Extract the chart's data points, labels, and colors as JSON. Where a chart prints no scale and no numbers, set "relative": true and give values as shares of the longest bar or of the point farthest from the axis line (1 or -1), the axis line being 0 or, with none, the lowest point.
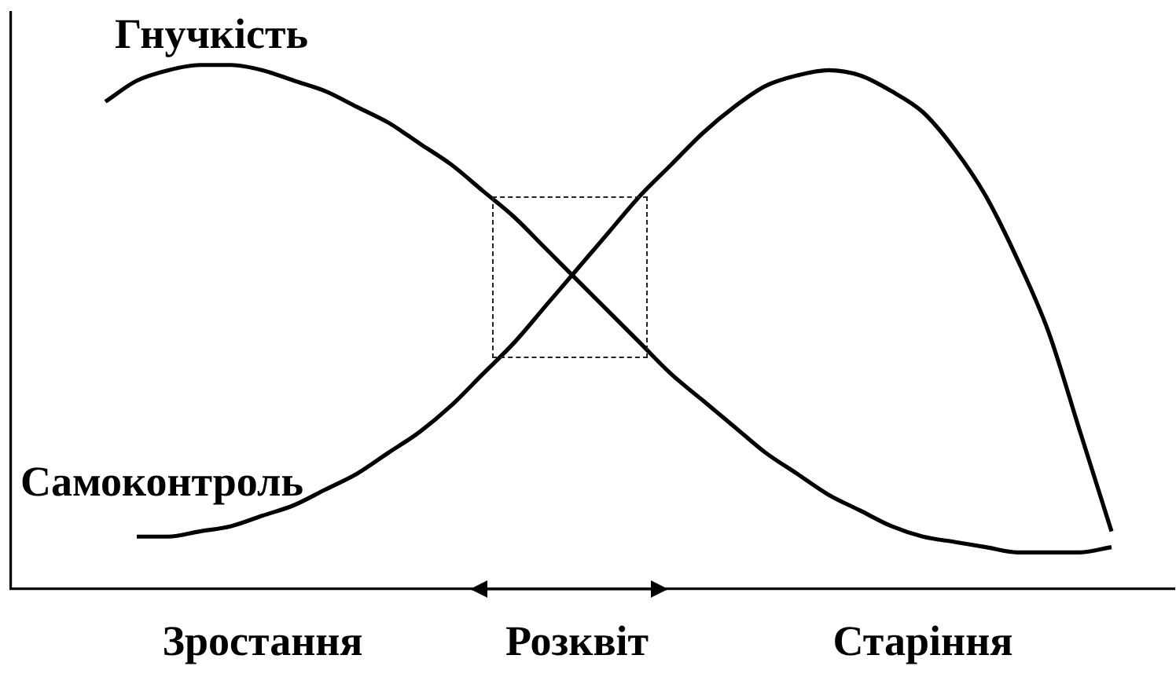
{
  "chart_data": {
    "type": "line",
    "relative": true,
    "marker": "none",
    "categories": [
      null,
      null,
      null,
      null,
      null,
      null,
      null,
      null,
      "Зростання",
      null,
      null,
      null,
      null,
      null,
      null,
      null,
      null,
      null,
      "Розквіт",
      null,
      null,
      null,
      null,
      null,
      null,
      null,
      null,
      null,
      null,
      "Старіння",
      null,
      null,
      null,
      null,
      null,
      null,
      null,
      null
    ],
    "series": [
      {
        "name": "Гнучкість",
        "color": "#000000",
        "values": [
          null,
          null,
          null,
          0.93,
          0.97,
          0.99,
          1,
          1,
          0.99,
          0.97,
          0.95,
          0.92,
          0.89,
          0.85,
          0.81,
          0.76,
          0.71,
          0.65,
          0.59,
          0.53,
          0.47,
          0.41,
          0.36,
          0.31,
          0.26,
          0.22,
          0.18,
          0.15,
          0.12,
          0.1,
          0.09,
          0.08,
          0.07,
          0.07,
          0.07,
          0.08,
          null,
          null
        ]
      },
      {
        "name": "Самоконтроль",
        "color": "#000000",
        "values": [
          null,
          null,
          null,
          null,
          0.1,
          0.1,
          0.11,
          0.12,
          0.14,
          0.16,
          0.19,
          0.22,
          0.26,
          0.3,
          0.35,
          0.41,
          0.47,
          0.54,
          0.61,
          0.68,
          0.75,
          0.81,
          0.87,
          0.92,
          0.96,
          0.98,
          0.99,
          0.98,
          0.95,
          0.91,
          0.84,
          0.75,
          0.63,
          0.49,
          0.3,
          0.11,
          null,
          null
        ]
      }
    ]
  }
}
